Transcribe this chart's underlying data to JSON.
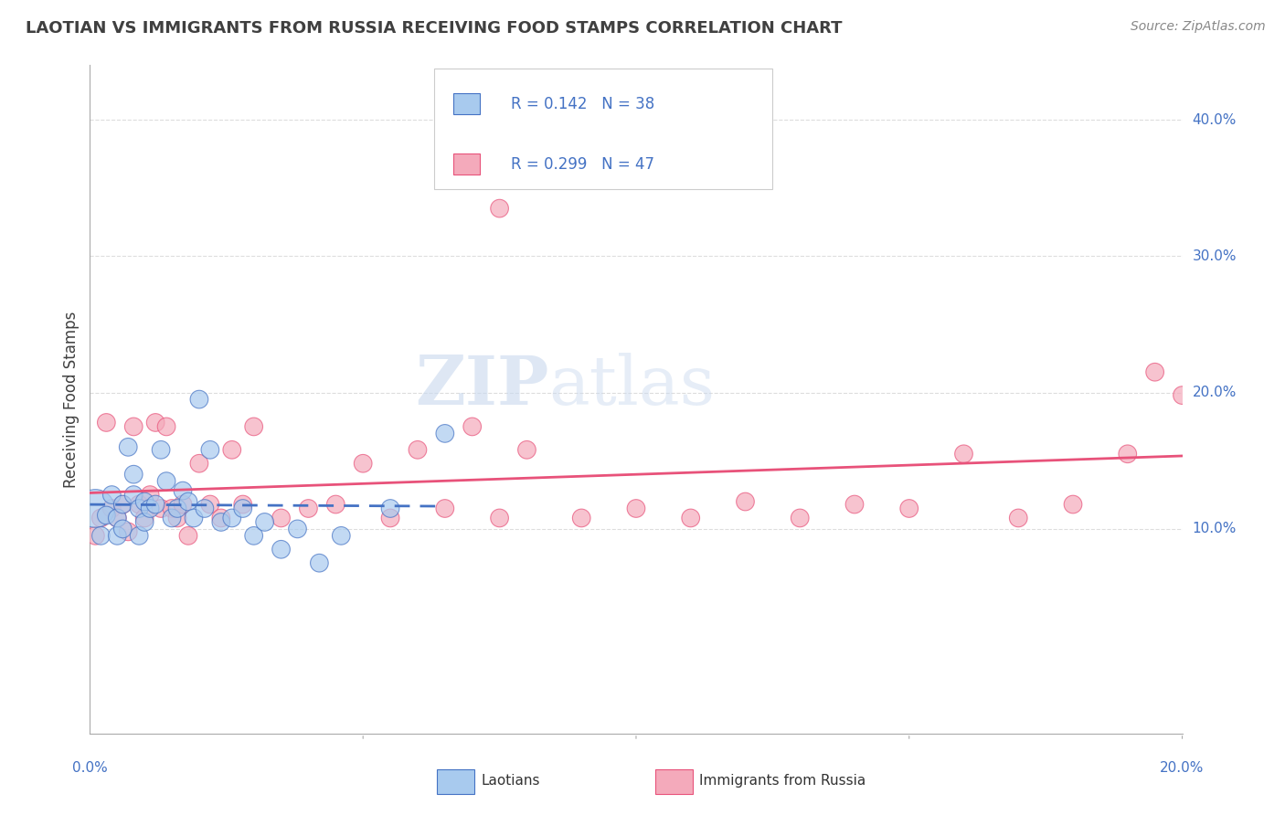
{
  "title": "LAOTIAN VS IMMIGRANTS FROM RUSSIA RECEIVING FOOD STAMPS CORRELATION CHART",
  "source": "Source: ZipAtlas.com",
  "ylabel": "Receiving Food Stamps",
  "ytick_labels": [
    "10.0%",
    "20.0%",
    "30.0%",
    "40.0%"
  ],
  "ytick_values": [
    0.1,
    0.2,
    0.3,
    0.4
  ],
  "xlim": [
    0.0,
    0.2
  ],
  "ylim": [
    -0.05,
    0.44
  ],
  "legend_r1": "R = 0.142",
  "legend_n1": "N = 38",
  "legend_r2": "R = 0.299",
  "legend_n2": "N = 47",
  "watermark_zip": "ZIP",
  "watermark_atlas": "atlas",
  "color_laotian": "#A8CAEE",
  "color_russia": "#F4AABB",
  "line_color_laotian": "#4472C4",
  "line_color_russia": "#E8527A",
  "color_laotian_dark": "#4472C4",
  "color_russia_dark": "#E8527A",
  "background_color": "#FFFFFF",
  "grid_color": "#DDDDDD",
  "tick_label_color": "#4472C4",
  "title_color": "#404040",
  "source_color": "#888888",
  "laotian_x": [
    0.001,
    0.002,
    0.003,
    0.004,
    0.005,
    0.005,
    0.006,
    0.006,
    0.007,
    0.008,
    0.008,
    0.009,
    0.009,
    0.01,
    0.01,
    0.011,
    0.012,
    0.013,
    0.014,
    0.015,
    0.016,
    0.017,
    0.018,
    0.019,
    0.02,
    0.021,
    0.022,
    0.024,
    0.026,
    0.028,
    0.03,
    0.032,
    0.035,
    0.038,
    0.042,
    0.046,
    0.055,
    0.065
  ],
  "laotian_y": [
    0.115,
    0.095,
    0.11,
    0.125,
    0.095,
    0.108,
    0.1,
    0.118,
    0.16,
    0.125,
    0.14,
    0.115,
    0.095,
    0.105,
    0.12,
    0.115,
    0.118,
    0.158,
    0.135,
    0.108,
    0.115,
    0.128,
    0.12,
    0.108,
    0.195,
    0.115,
    0.158,
    0.105,
    0.108,
    0.115,
    0.095,
    0.105,
    0.085,
    0.1,
    0.075,
    0.095,
    0.115,
    0.17
  ],
  "laotian_sizes": [
    900,
    200,
    200,
    200,
    200,
    200,
    200,
    200,
    200,
    200,
    200,
    200,
    200,
    200,
    200,
    200,
    200,
    200,
    200,
    200,
    200,
    200,
    200,
    200,
    200,
    200,
    200,
    200,
    200,
    200,
    200,
    200,
    200,
    200,
    200,
    200,
    200,
    200
  ],
  "russia_x": [
    0.001,
    0.002,
    0.003,
    0.004,
    0.005,
    0.006,
    0.007,
    0.008,
    0.009,
    0.01,
    0.011,
    0.012,
    0.013,
    0.014,
    0.015,
    0.016,
    0.017,
    0.018,
    0.02,
    0.022,
    0.024,
    0.026,
    0.028,
    0.03,
    0.035,
    0.04,
    0.045,
    0.05,
    0.055,
    0.06,
    0.065,
    0.07,
    0.075,
    0.08,
    0.09,
    0.1,
    0.11,
    0.12,
    0.13,
    0.14,
    0.15,
    0.16,
    0.17,
    0.18,
    0.19,
    0.195,
    0.2
  ],
  "russia_y": [
    0.095,
    0.108,
    0.178,
    0.115,
    0.108,
    0.118,
    0.098,
    0.175,
    0.118,
    0.108,
    0.125,
    0.178,
    0.115,
    0.175,
    0.115,
    0.108,
    0.118,
    0.095,
    0.148,
    0.118,
    0.108,
    0.158,
    0.118,
    0.175,
    0.108,
    0.115,
    0.118,
    0.148,
    0.108,
    0.158,
    0.115,
    0.175,
    0.108,
    0.158,
    0.108,
    0.115,
    0.108,
    0.12,
    0.108,
    0.118,
    0.115,
    0.155,
    0.108,
    0.118,
    0.155,
    0.215,
    0.198
  ],
  "russia_sizes": [
    200,
    200,
    200,
    200,
    200,
    200,
    200,
    200,
    200,
    200,
    200,
    200,
    200,
    200,
    200,
    200,
    200,
    200,
    200,
    200,
    200,
    200,
    200,
    200,
    200,
    200,
    200,
    200,
    200,
    200,
    200,
    200,
    200,
    200,
    200,
    200,
    200,
    200,
    200,
    200,
    200,
    200,
    200,
    200,
    200,
    200,
    200
  ],
  "russia_outlier_x": [
    0.075
  ],
  "russia_outlier_y": [
    0.335
  ],
  "russia_outlier_size": [
    200
  ]
}
